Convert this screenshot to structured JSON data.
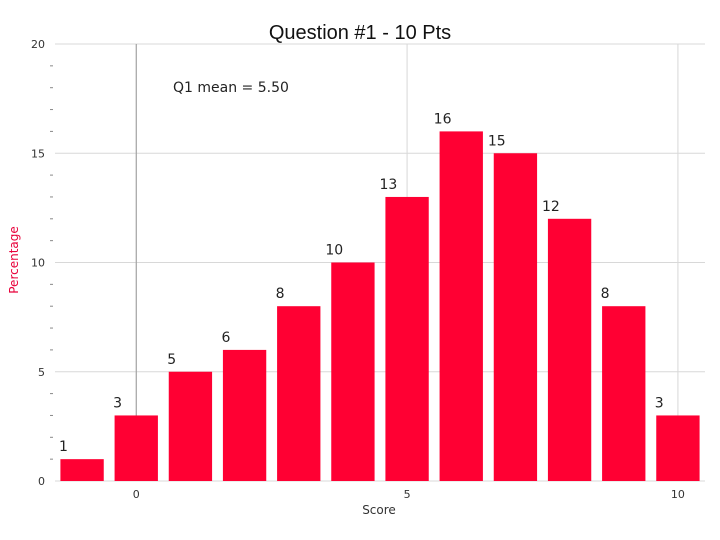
{
  "chart_data": {
    "type": "bar",
    "title": "Question #1 - 10 Pts",
    "xlabel": "Score",
    "ylabel": "Percentage",
    "annotation": "Q1 mean = 5.50",
    "categories": [
      -1,
      0,
      1,
      2,
      3,
      4,
      5,
      6,
      7,
      8,
      9,
      10
    ],
    "values": [
      1,
      3,
      5,
      6,
      8,
      10,
      13,
      16,
      15,
      12,
      8,
      3
    ],
    "data_labels": [
      "1",
      "3",
      "5",
      "6",
      "8",
      "10",
      "13",
      "16",
      "15",
      "12",
      "8",
      "3"
    ],
    "xlim": [
      -1.5,
      10.5
    ],
    "ylim": [
      0,
      20
    ],
    "xticks": [
      0,
      5,
      10
    ],
    "xtick_labels": [
      "0",
      "5",
      "10"
    ],
    "yticks": [
      0,
      5,
      10,
      15,
      20
    ],
    "ytick_labels": [
      "0",
      "5",
      "10",
      "15",
      "20"
    ],
    "grid": true,
    "reference_line_x": 0,
    "colors": {
      "bar": "#ff0033",
      "ylabel": "#e8003a",
      "grid": "#d8d8d8"
    }
  }
}
